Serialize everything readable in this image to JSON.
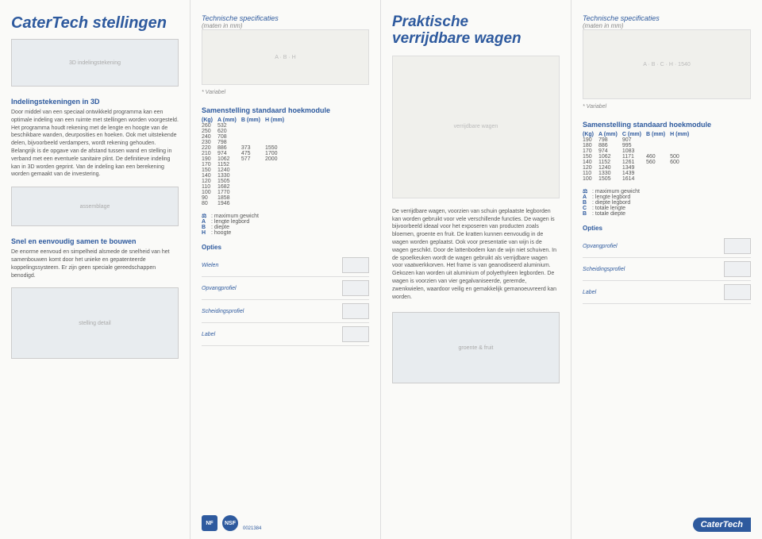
{
  "col1": {
    "title": "CaterTech stellingen",
    "img3d_label": "3D indelingstekening",
    "sec1_h": "Indelingstekeningen in 3D",
    "sec1_p": "Door middel van een speciaal ontwikkeld programma kan een optimale indeling van een ruimte met stellingen worden voorgesteld. Het programma houdt rekening met de lengte en hoogte van de beschikbare wanden, deurposities en hoeken. Ook met uitstekende delen, bijvoorbeeld verdampers, wordt rekening gehouden. Belangrijk is de opgave van de afstand tussen wand en stelling in verband met een eventuele sanitaire plint. De definitieve indeling kan in 3D worden geprint. Van de indeling kan een berekening worden gemaakt van de investering.",
    "sec2_h": "Snel en eenvoudig samen te bouwen",
    "sec2_p": "De enorme eenvoud en simpelheid alsmede de snelheid van het samenbouwen komt door het unieke en gepatenteerde koppelingssysteem. Er zijn geen speciale gereedschappen benodigd.",
    "img_assembly": "assemblage",
    "img_shelf": "stelling detail"
  },
  "col2": {
    "tech_label": "Technische specificaties",
    "dim_label": "(maten in mm)",
    "variabel": "* Variabel",
    "table_h": "Samenstelling standaard hoekmodule",
    "headers": [
      "(Kg)",
      "A (mm)",
      "B (mm)",
      "H (mm)"
    ],
    "rows": [
      [
        "260",
        "532",
        "",
        ""
      ],
      [
        "250",
        "620",
        "",
        ""
      ],
      [
        "240",
        "708",
        "",
        ""
      ],
      [
        "230",
        "798",
        "",
        ""
      ],
      [
        "220",
        "886",
        "373",
        "1550"
      ],
      [
        "210",
        "974",
        "475",
        "1700"
      ],
      [
        "190",
        "1062",
        "577",
        "2000"
      ],
      [
        "170",
        "1152",
        "",
        ""
      ],
      [
        "150",
        "1240",
        "",
        ""
      ],
      [
        "140",
        "1330",
        "",
        ""
      ],
      [
        "120",
        "1505",
        "",
        ""
      ],
      [
        "110",
        "1682",
        "",
        ""
      ],
      [
        "100",
        "1770",
        "",
        ""
      ],
      [
        "90",
        "1858",
        "",
        ""
      ],
      [
        "80",
        "1946",
        "",
        ""
      ]
    ],
    "legend": [
      {
        "k": "⚖",
        "v": ": maximum gewicht"
      },
      {
        "k": "A",
        "v": ": lengte legbord"
      },
      {
        "k": "B",
        "v": ": diepte"
      },
      {
        "k": "H",
        "v": ": hoogte"
      }
    ],
    "opties": "Opties",
    "opts": [
      "Wielen",
      "Opvangprofiel",
      "Scheidingsprofiel",
      "Label"
    ]
  },
  "col3": {
    "title_l1": "Praktische",
    "title_l2": "verrijdbare wagen",
    "body": "De verrijdbare wagen, voorzien van schuin geplaatste legborden kan worden gebruikt voor vele verschillende functies. De wagen is bijvoorbeeld ideaal voor het exposeren van producten zoals bloemen, groente en fruit. De kratten kunnen eenvoudig in de wagen worden geplaatst. Ook voor presentatie van wijn is de wagen geschikt. Door de lattenbodem kan de wijn niet schuiven. In de spoelkeuken wordt de wagen gebruikt als verrijdbare wagen voor vaatwerkkorven. Het frame is van geanodiseerd aluminium. Gekozen kan worden uit aluminium of polyethyleen legborden. De wagen is voorzien van vier gegalvaniseerde, geremde, zwenkwielen, waardoor veilig en gemakkelijk gemanoeuvreerd kan worden."
  },
  "col4": {
    "tech_label": "Technische specificaties",
    "dim_label": "(maten in mm)",
    "variabel": "* Variabel",
    "table_h": "Samenstelling standaard hoekmodule",
    "headers": [
      "(Kg)",
      "A (mm)",
      "C (mm)",
      "B (mm)",
      "H (mm)"
    ],
    "rows": [
      [
        "190",
        "798",
        "907",
        "",
        ""
      ],
      [
        "180",
        "886",
        "995",
        "",
        ""
      ],
      [
        "170",
        "974",
        "1083",
        "",
        ""
      ],
      [
        "150",
        "1062",
        "1171",
        "460",
        "500"
      ],
      [
        "140",
        "1152",
        "1261",
        "560",
        "600"
      ],
      [
        "120",
        "1240",
        "1349",
        "",
        ""
      ],
      [
        "110",
        "1330",
        "1439",
        "",
        ""
      ],
      [
        "100",
        "1505",
        "1614",
        "",
        ""
      ]
    ],
    "legend": [
      {
        "k": "⚖",
        "v": ": maximum gewicht"
      },
      {
        "k": "A",
        "v": ": lengte legbord"
      },
      {
        "k": "B",
        "v": ": diepte legbord"
      },
      {
        "k": "C",
        "v": ": totale lengte"
      },
      {
        "k": "B",
        "v": ": totale diepte"
      }
    ],
    "opties": "Opties",
    "opts": [
      "Opvangprofiel",
      "Scheidingsprofiel",
      "Label"
    ]
  },
  "footer": {
    "brand": "CaterTech",
    "nf": "NF",
    "nsf": "NSF",
    "cert_num": "0021384"
  }
}
